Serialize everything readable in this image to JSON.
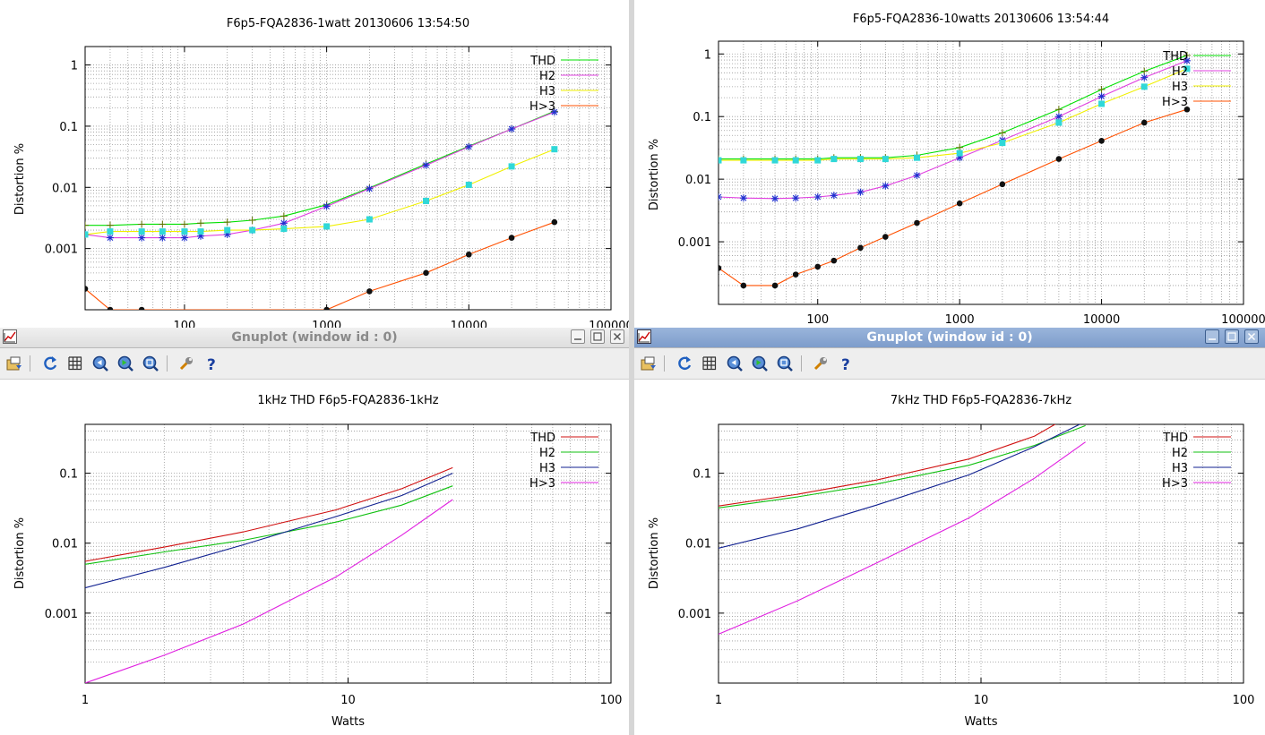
{
  "windows": {
    "top_left": {
      "plot_title": "F6p5-FQA2836-1watt 20130606 13:54:50"
    },
    "top_right": {
      "plot_title": "F6p5-FQA2836-10watts 20130606 13:54:44"
    },
    "bottom_left": {
      "window_title": "Gnuplot (window id : 0)",
      "plot_title": "1kHz THD F6p5-FQA2836-1kHz"
    },
    "bottom_right": {
      "window_title": "Gnuplot (window id : 0)",
      "plot_title": "7kHz THD F6p5-FQA2836-7kHz"
    }
  },
  "toolbar": {
    "icons": [
      "export-icon",
      "replot-icon",
      "grid-icon",
      "zoom-prev-icon",
      "zoom-next-icon",
      "autoscale-icon",
      "settings-icon",
      "help-icon"
    ]
  },
  "chart_data": [
    {
      "type": "line",
      "title": "F6p5-FQA2836-1watt 20130606 13:54:50",
      "xlabel": "",
      "ylabel": "Distortion %",
      "xscale": "log",
      "yscale": "log",
      "xlim": [
        20,
        100000
      ],
      "ylim": [
        0.0001,
        2
      ],
      "xticks": [
        100,
        1000,
        10000,
        100000
      ],
      "xtick_labels": [
        "100",
        "1000",
        "10000",
        "100000"
      ],
      "yticks": [
        0.001,
        0.01,
        0.1,
        1
      ],
      "ytick_labels": [
        "0.001",
        "0.01",
        "0.1",
        "1"
      ],
      "grid": true,
      "legend": "top-right",
      "series": [
        {
          "name": "THD",
          "color": "#00e000",
          "marker": "plus",
          "x": [
            20,
            30,
            50,
            70,
            100,
            130,
            200,
            300,
            500,
            1000,
            2000,
            5000,
            10000,
            20000,
            40000
          ],
          "values": [
            0.0024,
            0.0024,
            0.0025,
            0.0025,
            0.0025,
            0.0026,
            0.0027,
            0.0029,
            0.0034,
            0.0052,
            0.0098,
            0.024,
            0.047,
            0.09,
            0.175
          ]
        },
        {
          "name": "H2",
          "color": "#e040e0",
          "marker": "star",
          "x": [
            20,
            30,
            50,
            70,
            100,
            130,
            200,
            300,
            500,
            1000,
            2000,
            5000,
            10000,
            20000,
            40000
          ],
          "values": [
            0.0017,
            0.0015,
            0.0015,
            0.0015,
            0.0015,
            0.0016,
            0.0017,
            0.002,
            0.0026,
            0.0049,
            0.0095,
            0.023,
            0.046,
            0.09,
            0.17
          ]
        },
        {
          "name": "H3",
          "color": "#f0f000",
          "marker": "square",
          "x": [
            20,
            30,
            50,
            70,
            100,
            130,
            200,
            300,
            500,
            1000,
            2000,
            5000,
            10000,
            20000,
            40000
          ],
          "values": [
            0.0017,
            0.0019,
            0.0019,
            0.0019,
            0.0019,
            0.0019,
            0.002,
            0.002,
            0.0021,
            0.0023,
            0.003,
            0.006,
            0.011,
            0.022,
            0.042
          ]
        },
        {
          "name": "H>3",
          "color": "#ff5000",
          "marker": "circle",
          "x": [
            20,
            30,
            50,
            1000,
            2000,
            5000,
            10000,
            20000,
            40000
          ],
          "values": [
            0.00022,
            0.0001,
            0.0001,
            0.0001,
            0.0002,
            0.0004,
            0.0008,
            0.0015,
            0.0027
          ]
        }
      ]
    },
    {
      "type": "line",
      "title": "F6p5-FQA2836-10watts 20130606 13:54:44",
      "xlabel": "",
      "ylabel": "Distortion %",
      "xscale": "log",
      "yscale": "log",
      "xlim": [
        20,
        100000
      ],
      "ylim": [
        0.0001,
        1.6
      ],
      "xticks": [
        100,
        1000,
        10000,
        100000
      ],
      "xtick_labels": [
        "100",
        "1000",
        "10000",
        "100000"
      ],
      "yticks": [
        0.001,
        0.01,
        0.1,
        1
      ],
      "ytick_labels": [
        "0.001",
        "0.01",
        "0.1",
        "1"
      ],
      "grid": true,
      "legend": "top-right",
      "series": [
        {
          "name": "THD",
          "color": "#00e000",
          "marker": "plus",
          "x": [
            20,
            30,
            50,
            70,
            100,
            130,
            200,
            300,
            500,
            1000,
            2000,
            5000,
            10000,
            20000,
            40000
          ],
          "values": [
            0.021,
            0.021,
            0.021,
            0.021,
            0.021,
            0.022,
            0.022,
            0.022,
            0.024,
            0.032,
            0.055,
            0.13,
            0.27,
            0.53,
            0.95
          ]
        },
        {
          "name": "H2",
          "color": "#e040e0",
          "marker": "star",
          "x": [
            20,
            30,
            50,
            70,
            100,
            130,
            200,
            300,
            500,
            1000,
            2000,
            5000,
            10000,
            20000,
            40000
          ],
          "values": [
            0.0052,
            0.005,
            0.0049,
            0.005,
            0.0052,
            0.0055,
            0.0062,
            0.0078,
            0.0115,
            0.022,
            0.042,
            0.1,
            0.21,
            0.42,
            0.78
          ]
        },
        {
          "name": "H3",
          "color": "#f0f000",
          "marker": "square",
          "x": [
            20,
            30,
            50,
            70,
            100,
            130,
            200,
            300,
            500,
            1000,
            2000,
            5000,
            10000,
            20000,
            40000
          ],
          "values": [
            0.02,
            0.02,
            0.02,
            0.02,
            0.02,
            0.021,
            0.021,
            0.021,
            0.022,
            0.026,
            0.038,
            0.08,
            0.16,
            0.3,
            0.58
          ]
        },
        {
          "name": "H>3",
          "color": "#ff5000",
          "marker": "circle",
          "x": [
            20,
            30,
            50,
            70,
            100,
            130,
            200,
            300,
            500,
            1000,
            2000,
            5000,
            10000,
            20000,
            40000
          ],
          "values": [
            0.00038,
            0.0002,
            0.0002,
            0.0003,
            0.0004,
            0.0005,
            0.0008,
            0.0012,
            0.002,
            0.0041,
            0.0083,
            0.021,
            0.041,
            0.08,
            0.13
          ]
        }
      ]
    },
    {
      "type": "line",
      "title": "1kHz THD F6p5-FQA2836-1kHz",
      "xlabel": "Watts",
      "ylabel": "Distortion %",
      "xscale": "log",
      "yscale": "log",
      "xlim": [
        1,
        100
      ],
      "ylim": [
        0.0001,
        0.5
      ],
      "xticks": [
        1,
        10,
        100
      ],
      "xtick_labels": [
        "1",
        "10",
        "100"
      ],
      "yticks": [
        0.001,
        0.01,
        0.1
      ],
      "ytick_labels": [
        "0.001",
        "0.01",
        "0.1"
      ],
      "grid": true,
      "legend": "top-right",
      "series": [
        {
          "name": "THD",
          "color": "#d01010",
          "x": [
            1,
            2,
            4,
            9,
            16,
            25
          ],
          "values": [
            0.0055,
            0.0088,
            0.0145,
            0.03,
            0.06,
            0.12
          ]
        },
        {
          "name": "H2",
          "color": "#10c010",
          "x": [
            1,
            2,
            4,
            9,
            16,
            25
          ],
          "values": [
            0.005,
            0.0075,
            0.011,
            0.02,
            0.035,
            0.066
          ]
        },
        {
          "name": "H3",
          "color": "#102090",
          "x": [
            1,
            2,
            4,
            9,
            16,
            25
          ],
          "values": [
            0.0023,
            0.0045,
            0.0095,
            0.024,
            0.048,
            0.1
          ]
        },
        {
          "name": "H>3",
          "color": "#e020e0",
          "x": [
            1,
            2,
            4,
            9,
            16,
            25
          ],
          "values": [
            0.0001,
            0.00025,
            0.0007,
            0.0033,
            0.013,
            0.042
          ]
        }
      ]
    },
    {
      "type": "line",
      "title": "7kHz THD F6p5-FQA2836-7kHz",
      "xlabel": "Watts",
      "ylabel": "Distortion %",
      "xscale": "log",
      "yscale": "log",
      "xlim": [
        1,
        100
      ],
      "ylim": [
        0.0001,
        0.5
      ],
      "xticks": [
        1,
        10,
        100
      ],
      "xtick_labels": [
        "1",
        "10",
        "100"
      ],
      "yticks": [
        0.001,
        0.01,
        0.1
      ],
      "ytick_labels": [
        "0.001",
        "0.01",
        "0.1"
      ],
      "grid": true,
      "legend": "top-right",
      "series": [
        {
          "name": "THD",
          "color": "#d01010",
          "x": [
            1,
            2,
            4,
            9,
            16,
            20
          ],
          "values": [
            0.034,
            0.05,
            0.08,
            0.16,
            0.34,
            0.55
          ]
        },
        {
          "name": "H2",
          "color": "#10c010",
          "x": [
            1,
            2,
            4,
            9,
            16,
            25
          ],
          "values": [
            0.032,
            0.046,
            0.07,
            0.13,
            0.25,
            0.48
          ]
        },
        {
          "name": "H3",
          "color": "#102090",
          "x": [
            1,
            2,
            4,
            9,
            16,
            25
          ],
          "values": [
            0.0085,
            0.016,
            0.035,
            0.095,
            0.24,
            0.55
          ]
        },
        {
          "name": "H>3",
          "color": "#e020e0",
          "x": [
            1,
            2,
            4,
            9,
            16,
            25
          ],
          "values": [
            0.0005,
            0.0015,
            0.0052,
            0.023,
            0.085,
            0.28
          ]
        }
      ]
    }
  ]
}
